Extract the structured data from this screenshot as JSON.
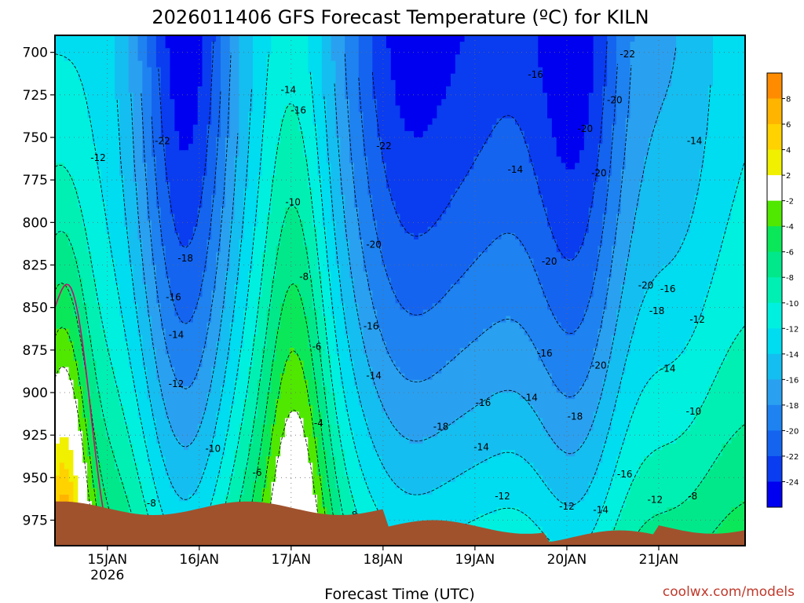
{
  "chart_data": {
    "type": "heatmap",
    "title": "2026011406 GFS Forecast Temperature (ºC) for KILN",
    "xlabel": "Forecast Time (UTC)",
    "credit": "coolwx.com/models",
    "ylim": [
      690,
      990
    ],
    "y_ticks": [
      700,
      725,
      750,
      775,
      800,
      825,
      850,
      875,
      900,
      925,
      950,
      975
    ],
    "x_range_days_from_15jan": [
      -0.57,
      6.94
    ],
    "x_ticks": [
      {
        "label": "15JAN",
        "sub": "2026",
        "day": 0
      },
      {
        "label": "16JAN",
        "sub": "",
        "day": 1
      },
      {
        "label": "17JAN",
        "sub": "",
        "day": 2
      },
      {
        "label": "18JAN",
        "sub": "",
        "day": 3
      },
      {
        "label": "19JAN",
        "sub": "",
        "day": 4
      },
      {
        "label": "20JAN",
        "sub": "",
        "day": 5
      },
      {
        "label": "21JAN",
        "sub": "",
        "day": 6
      }
    ],
    "colorbar": {
      "levels": [
        -26,
        -24,
        -22,
        -20,
        -18,
        -16,
        -14,
        -12,
        -10,
        -8,
        -6,
        -4,
        -2,
        2,
        4,
        6,
        8,
        10
      ],
      "tick_labels": [
        "-24",
        "-22",
        "-20",
        "-18",
        "-16",
        "-14",
        "-12",
        "-10",
        "-8",
        "-6",
        "-4",
        "-2",
        "2",
        "4",
        "6",
        "8"
      ],
      "colors": [
        "#0000f0",
        "#0a3cf0",
        "#1464f0",
        "#1e82f0",
        "#2aa0f0",
        "#14bef0",
        "#00dcf0",
        "#00f0e0",
        "#00f0b4",
        "#00e88a",
        "#0ae85a",
        "#50e800",
        "#ffffff",
        "#f0f000",
        "#ffd200",
        "#ffb400",
        "#ff8c00"
      ]
    },
    "contour_labels": [
      {
        "v": "-12",
        "d": -0.1,
        "p": 762
      },
      {
        "v": "-22",
        "d": 0.6,
        "p": 752
      },
      {
        "v": "-18",
        "d": 0.85,
        "p": 821
      },
      {
        "v": "-16",
        "d": 0.72,
        "p": 844
      },
      {
        "v": "-14",
        "d": 0.75,
        "p": 866
      },
      {
        "v": "-12",
        "d": 0.75,
        "p": 895
      },
      {
        "v": "-10",
        "d": 1.15,
        "p": 933
      },
      {
        "v": "-8",
        "d": 0.48,
        "p": 965
      },
      {
        "v": "-14",
        "d": 1.97,
        "p": 722
      },
      {
        "v": "-16",
        "d": 2.08,
        "p": 734
      },
      {
        "v": "-10",
        "d": 2.02,
        "p": 788
      },
      {
        "v": "-8",
        "d": 2.14,
        "p": 832
      },
      {
        "v": "-6",
        "d": 2.28,
        "p": 873
      },
      {
        "v": "-4",
        "d": 2.3,
        "p": 918
      },
      {
        "v": "-6",
        "d": 1.63,
        "p": 947
      },
      {
        "v": "-22",
        "d": 3.01,
        "p": 755
      },
      {
        "v": "-20",
        "d": 2.9,
        "p": 813
      },
      {
        "v": "-16",
        "d": 2.87,
        "p": 861
      },
      {
        "v": "-14",
        "d": 2.9,
        "p": 890
      },
      {
        "v": "-8",
        "d": 2.67,
        "p": 972
      },
      {
        "v": "-18",
        "d": 3.63,
        "p": 920
      },
      {
        "v": "-16",
        "d": 4.09,
        "p": 906
      },
      {
        "v": "-14",
        "d": 4.07,
        "p": 932
      },
      {
        "v": "-12",
        "d": 4.3,
        "p": 961
      },
      {
        "v": "-14",
        "d": 4.44,
        "p": 769
      },
      {
        "v": "-16",
        "d": 4.66,
        "p": 713
      },
      {
        "v": "-22",
        "d": 5.66,
        "p": 701
      },
      {
        "v": "-20",
        "d": 5.52,
        "p": 728
      },
      {
        "v": "-20",
        "d": 5.2,
        "p": 745
      },
      {
        "v": "-20",
        "d": 5.35,
        "p": 771
      },
      {
        "v": "-20",
        "d": 4.81,
        "p": 823
      },
      {
        "v": "-16",
        "d": 4.76,
        "p": 877
      },
      {
        "v": "-20",
        "d": 5.35,
        "p": 884
      },
      {
        "v": "-14",
        "d": 4.6,
        "p": 903
      },
      {
        "v": "-18",
        "d": 5.09,
        "p": 914
      },
      {
        "v": "-16",
        "d": 5.63,
        "p": 948
      },
      {
        "v": "-12",
        "d": 5.96,
        "p": 963
      },
      {
        "v": "-12",
        "d": 5.0,
        "p": 967
      },
      {
        "v": "-14",
        "d": 5.37,
        "p": 969
      },
      {
        "v": "-20",
        "d": 5.86,
        "p": 837
      },
      {
        "v": "-16",
        "d": 6.1,
        "p": 839
      },
      {
        "v": "-18",
        "d": 5.98,
        "p": 852
      },
      {
        "v": "-14",
        "d": 6.39,
        "p": 752
      },
      {
        "v": "-12",
        "d": 6.42,
        "p": 857
      },
      {
        "v": "-14",
        "d": 6.1,
        "p": 886
      },
      {
        "v": "-10",
        "d": 6.38,
        "p": 911
      },
      {
        "v": "-8",
        "d": 6.37,
        "p": 961
      }
    ]
  }
}
